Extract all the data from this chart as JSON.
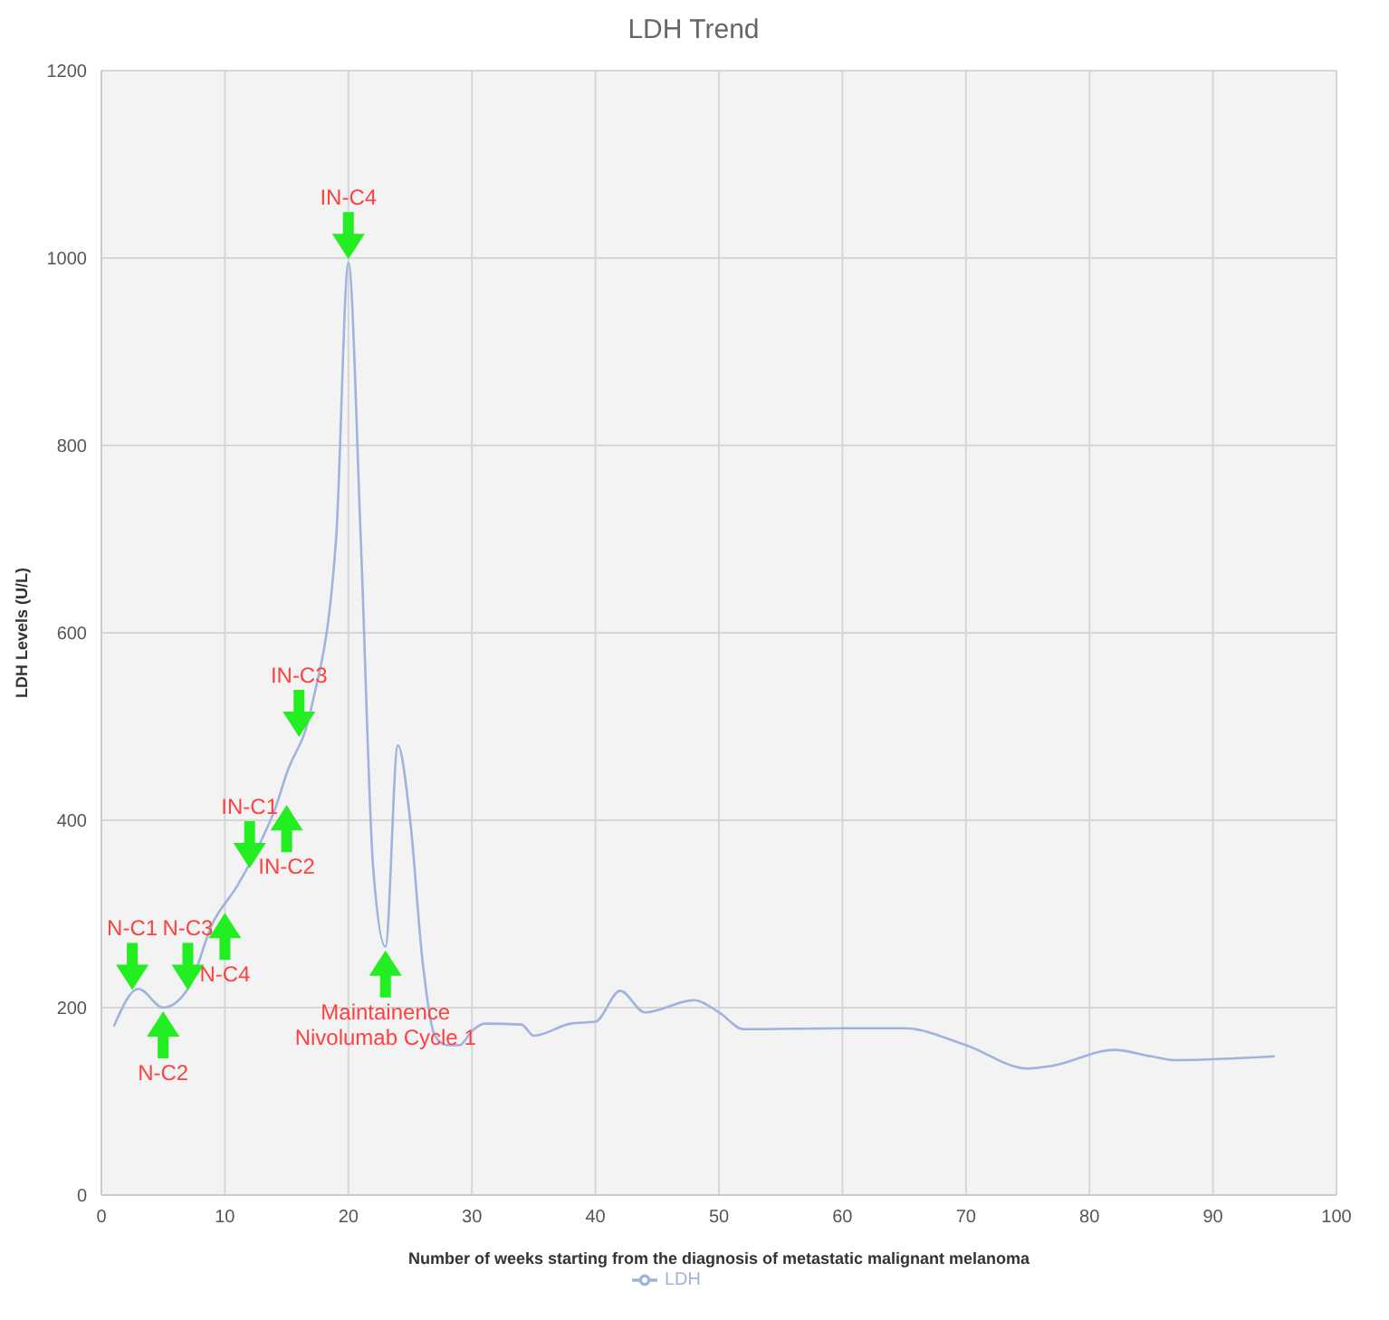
{
  "chart_data": {
    "type": "line",
    "title": "LDH Trend",
    "xlabel": "Number of weeks starting from the diagnosis of metastatic malignant melanoma",
    "ylabel": "LDH Levels (U/L)",
    "xlim": [
      0,
      100
    ],
    "xticks": [
      0,
      10,
      20,
      30,
      40,
      50,
      60,
      70,
      80,
      90,
      100
    ],
    "ylim": [
      0,
      1200
    ],
    "yticks": [
      0,
      200,
      400,
      600,
      800,
      1000,
      1200
    ],
    "grid": true,
    "legend": "bottom",
    "marker": "none",
    "line_style": "solid",
    "series": [
      {
        "name": "LDH",
        "color": "#9fb3dc",
        "x": [
          1,
          3,
          5,
          7,
          9,
          11,
          13,
          14,
          15,
          17,
          19,
          20,
          21,
          22,
          23,
          24,
          25,
          26,
          27,
          28,
          29,
          30,
          31,
          34,
          35,
          38,
          40,
          42,
          44,
          48,
          50,
          52,
          60,
          65,
          70,
          75,
          77,
          82,
          85,
          87,
          95
        ],
        "values": [
          180,
          220,
          200,
          220,
          290,
          330,
          380,
          410,
          450,
          520,
          700,
          995,
          700,
          350,
          265,
          480,
          400,
          250,
          170,
          160,
          160,
          175,
          183,
          182,
          170,
          183,
          185,
          218,
          195,
          208,
          195,
          177,
          178,
          178,
          160,
          135,
          138,
          155,
          148,
          144,
          148
        ]
      }
    ],
    "annotations": [
      {
        "text": "N-C1",
        "x": 2.5,
        "y": 215
      },
      {
        "text": "N-C2",
        "x": 5,
        "y": 200
      },
      {
        "text": "N-C3",
        "x": 7,
        "y": 215
      },
      {
        "text": "N-C4",
        "x": 10,
        "y": 305
      },
      {
        "text": "IN-C1",
        "x": 12,
        "y": 345
      },
      {
        "text": "IN-C2",
        "x": 15,
        "y": 420
      },
      {
        "text": "IN-C3",
        "x": 16,
        "y": 485
      },
      {
        "text": "IN-C4",
        "x": 20,
        "y": 995
      },
      {
        "text": "Maintainence\nNivolumab Cycle 1",
        "x": 23,
        "y": 265
      }
    ]
  }
}
